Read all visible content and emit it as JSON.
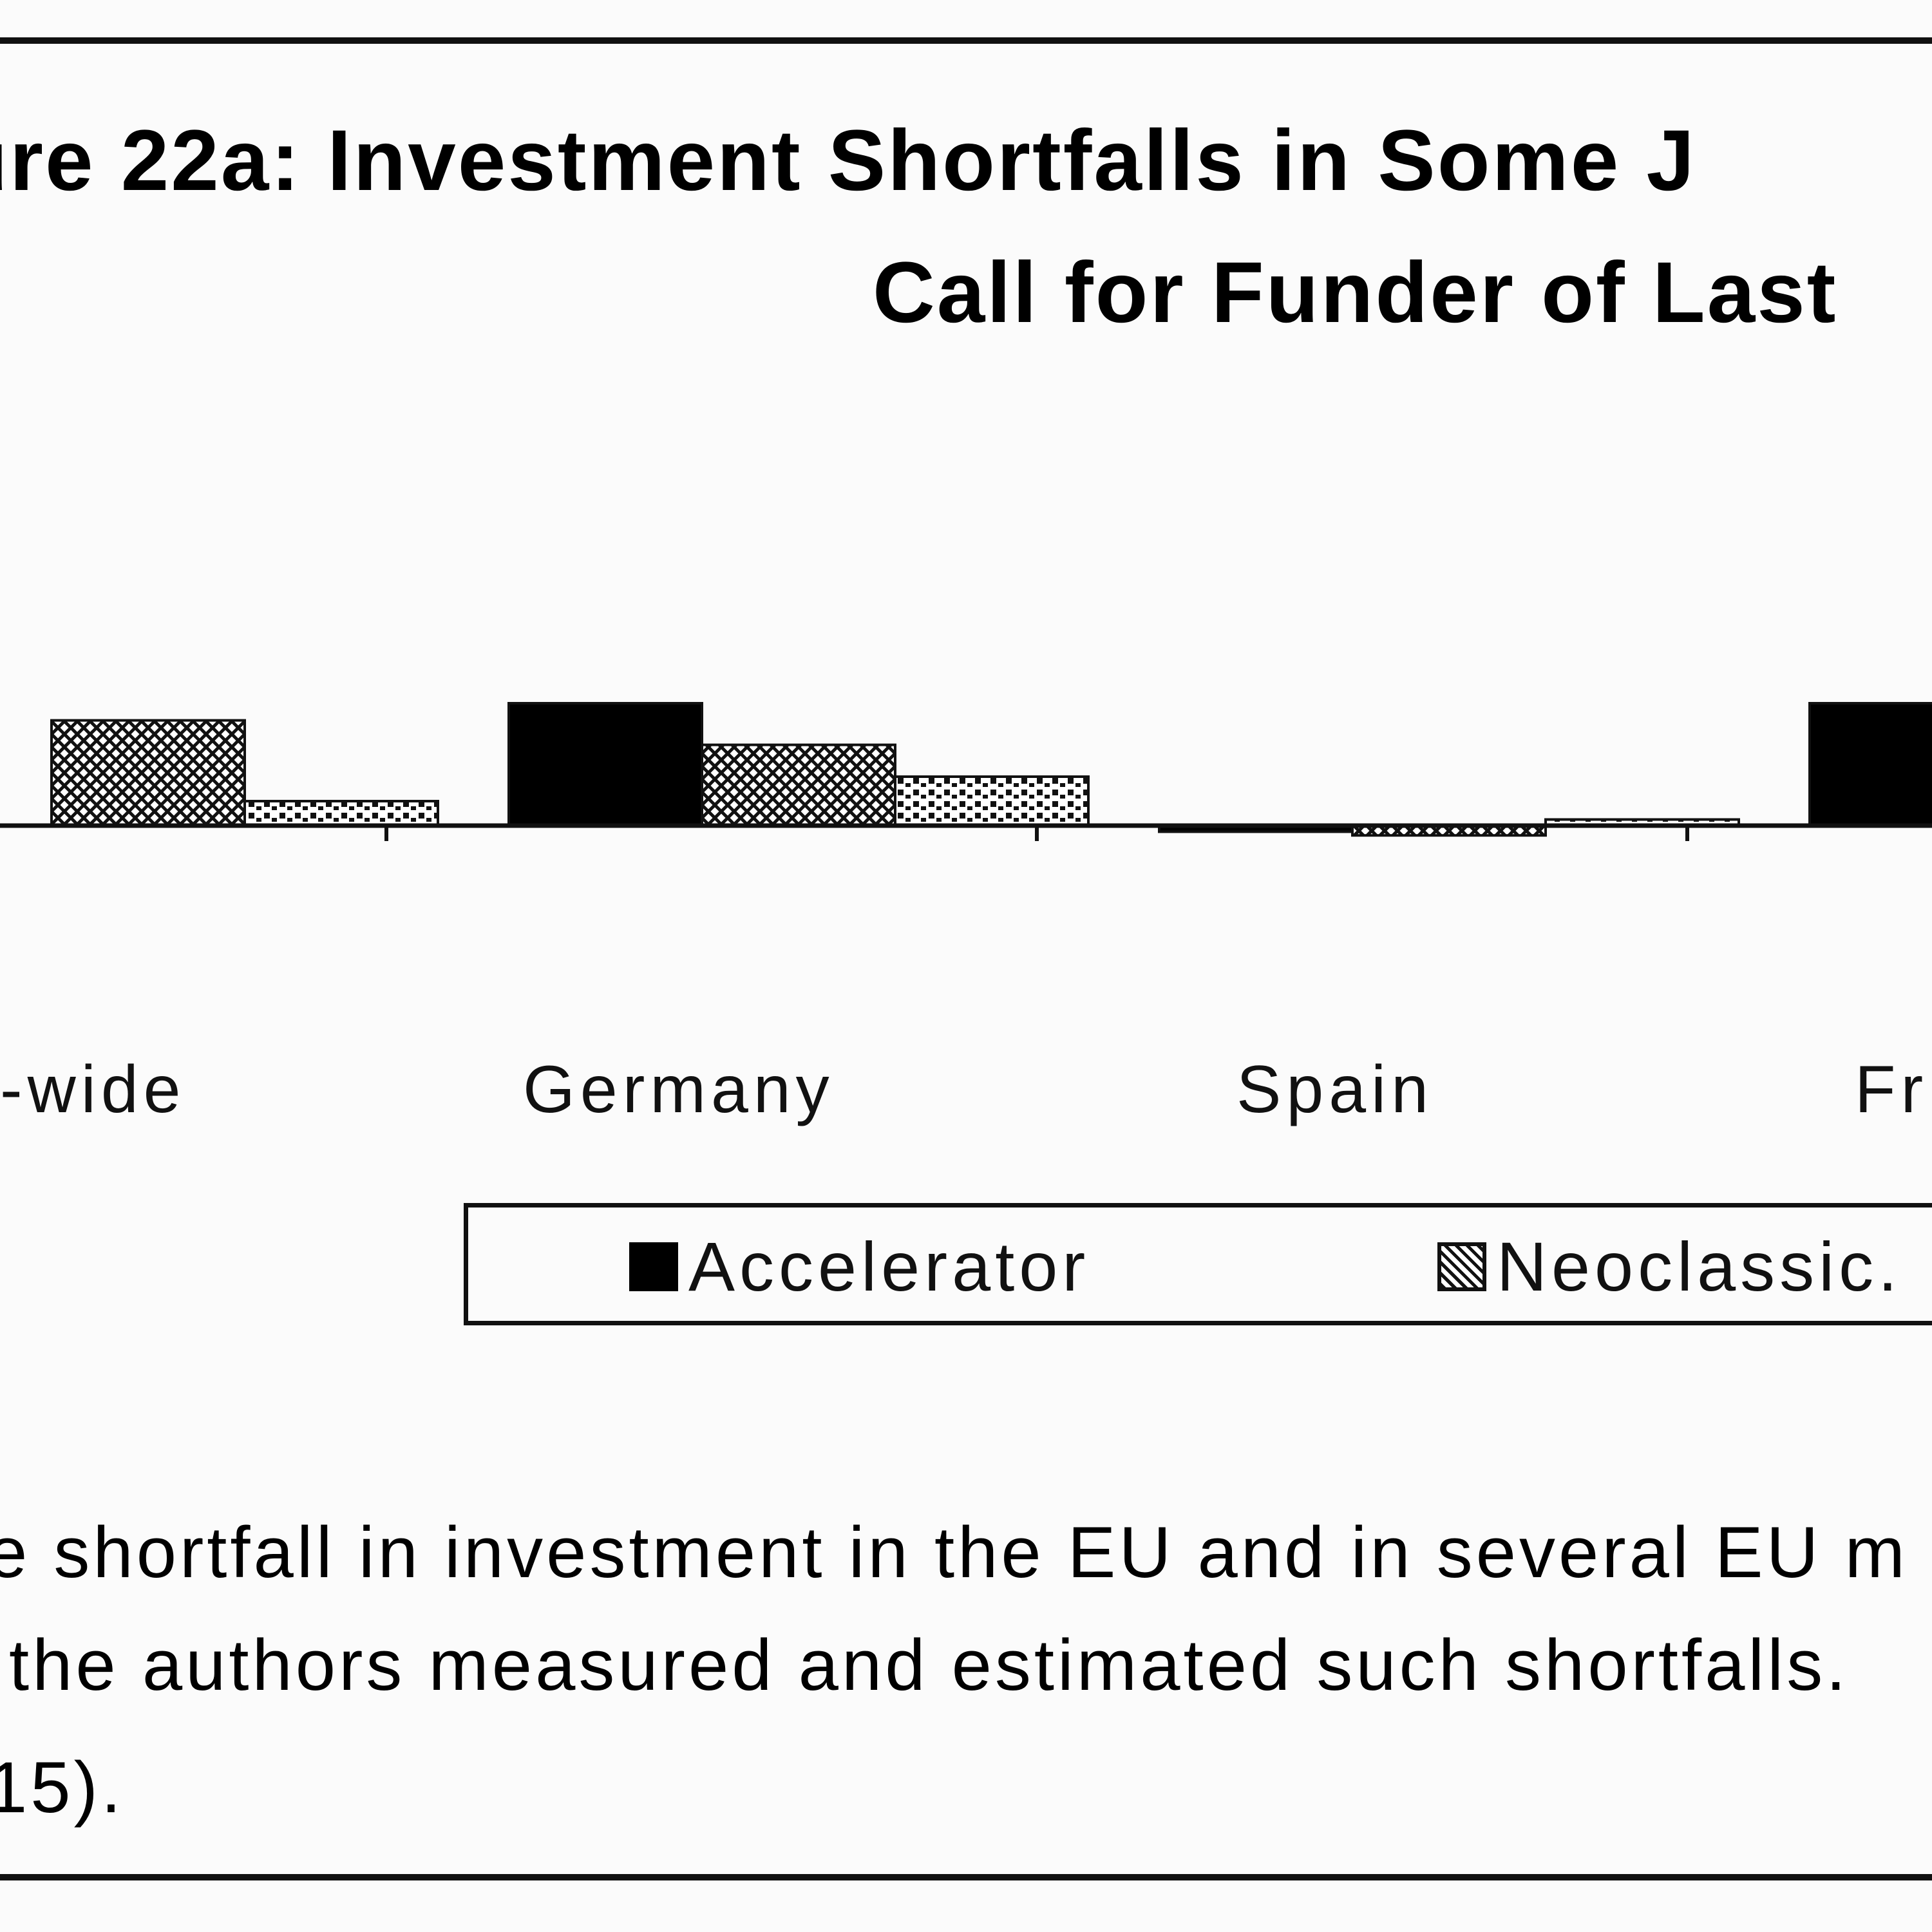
{
  "figure": {
    "title_line_1": "ure 22a: Investment Shortfalls in Some J",
    "title_line_2": "Call for Funder of Last",
    "caption_line_1": "e shortfall in investment in the EU and in several EU m",
    "caption_line_2": "the authors measured and estimated such shortfalls.",
    "caption_line_3": "15).",
    "colors": {
      "background": "#fbfbfb",
      "frame": "#111111",
      "bar": "#000000",
      "pattern_light": "#ffffff"
    }
  },
  "chart_data": {
    "type": "bar",
    "title": "ure 22a: Investment Shortfalls in Some J Call for Funder of Last",
    "categories": [
      "-wide",
      "Germany",
      "Spain",
      "Fr"
    ],
    "series": [
      {
        "name": "Accelerator",
        "pattern": "solid-black",
        "values": [
          null,
          1.0,
          -0.05,
          1.0
        ]
      },
      {
        "name": "Neoclassic",
        "pattern": "crosshatch",
        "values": [
          0.86,
          0.66,
          -0.08,
          0.47
        ]
      },
      {
        "name": "",
        "pattern": "dots",
        "values": [
          0.2,
          0.4,
          0.05,
          null
        ]
      }
    ],
    "legend": [
      "Accelerator",
      "Neoclassic."
    ],
    "legend_position": "bottom",
    "grid": false,
    "xlabel": "",
    "ylabel": "",
    "ylim": [
      -0.2,
      1.0
    ]
  }
}
